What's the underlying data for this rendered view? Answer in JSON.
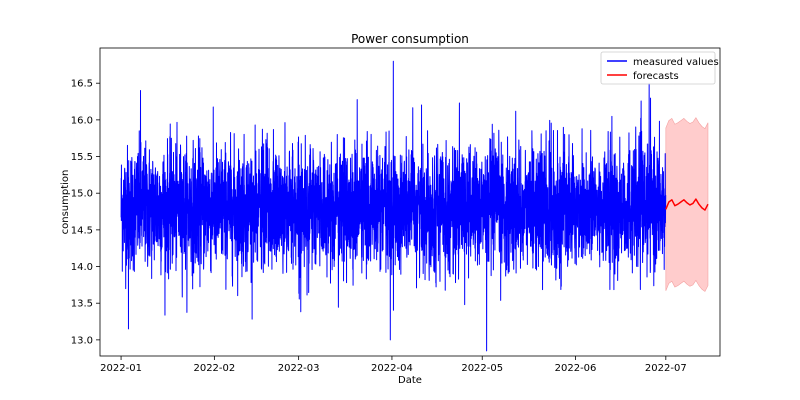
{
  "chart_data": {
    "type": "line",
    "title": "Power consumption",
    "xlabel": "Date",
    "ylabel": "consumption",
    "x_tick_labels": [
      "2022-01",
      "2022-02",
      "2022-03",
      "2022-04",
      "2022-05",
      "2022-06",
      "2022-07"
    ],
    "y_tick_labels": [
      "13.0",
      "13.5",
      "14.0",
      "14.5",
      "15.0",
      "15.5",
      "16.0",
      "16.5"
    ],
    "xlim": [
      "2021-12-25",
      "2022-07-19"
    ],
    "ylim": [
      12.78,
      16.98
    ],
    "grid": false,
    "legend_position": "top-right",
    "colors": {
      "measured": "#0000ff",
      "forecast": "#ff0000",
      "band": "#ffcccc",
      "band_edge": "#f4a0a0"
    },
    "series": [
      {
        "name": "measured values",
        "summary": {
          "start": "2022-01-01",
          "end": "2022-06-30",
          "mean": 14.8,
          "min": 12.85,
          "max": 16.8
        },
        "notable_points": [
          {
            "x": "2022-01-03",
            "y": 13.15
          },
          {
            "x": "2022-01-07",
            "y": 16.4
          },
          {
            "x": "2022-03-31",
            "y": 13.0
          },
          {
            "x": "2022-04-01",
            "y": 16.8
          },
          {
            "x": "2022-05-02",
            "y": 12.85
          },
          {
            "x": "2022-06-25",
            "y": 16.5
          }
        ]
      },
      {
        "name": "forecasts",
        "x": [
          "2022-07-01",
          "2022-07-02",
          "2022-07-03",
          "2022-07-04",
          "2022-07-05",
          "2022-07-06",
          "2022-07-07",
          "2022-07-08",
          "2022-07-09",
          "2022-07-10",
          "2022-07-11",
          "2022-07-12",
          "2022-07-13",
          "2022-07-14",
          "2022-07-15"
        ],
        "y": [
          14.78,
          14.88,
          14.91,
          14.83,
          14.85,
          14.88,
          14.91,
          14.87,
          14.84,
          14.86,
          14.92,
          14.85,
          14.8,
          14.77,
          14.85
        ],
        "lower": [
          13.67,
          13.77,
          13.8,
          13.72,
          13.74,
          13.77,
          13.8,
          13.76,
          13.73,
          13.75,
          13.81,
          13.74,
          13.69,
          13.66,
          13.74
        ],
        "upper": [
          15.89,
          15.99,
          16.02,
          15.94,
          15.96,
          15.99,
          16.02,
          15.98,
          15.95,
          15.97,
          16.03,
          15.96,
          15.91,
          15.88,
          15.96
        ]
      }
    ]
  }
}
